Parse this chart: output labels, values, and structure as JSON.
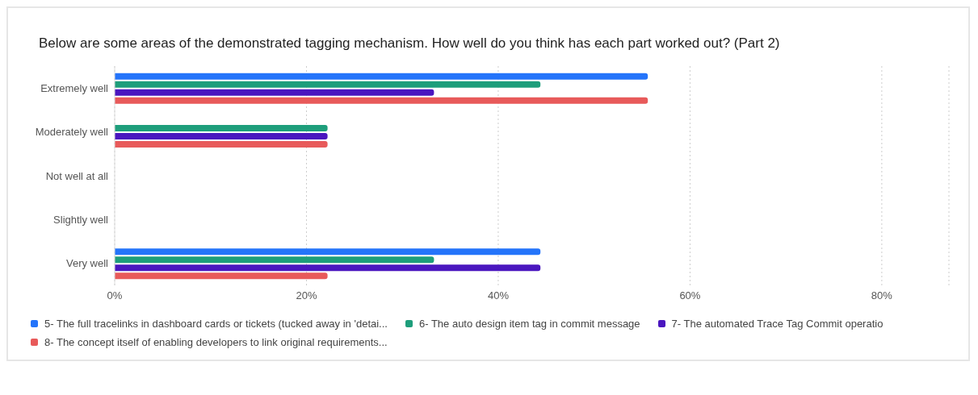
{
  "chart_data": {
    "type": "bar",
    "orientation": "horizontal",
    "title": "Below are some areas of the demonstrated tagging mechanism. How well do you think has each part worked out? (Part 2)",
    "categories": [
      "Extremely well",
      "Moderately well",
      "Not well at all",
      "Slightly well",
      "Very well"
    ],
    "series": [
      {
        "name": "5- The full tracelinks in dashboard cards or tickets (tucked away in 'detai...",
        "color": "#2474fa",
        "values": [
          55.6,
          0,
          0,
          0,
          44.4
        ]
      },
      {
        "name": "6- The auto design item tag in commit message",
        "color": "#1e9e7b",
        "values": [
          44.4,
          22.2,
          0,
          0,
          33.3
        ]
      },
      {
        "name": "7- The automated Trace Tag Commit operatio",
        "color": "#4a16bf",
        "values": [
          33.3,
          22.2,
          0,
          0,
          44.4
        ]
      },
      {
        "name": "8- The concept itself of enabling developers to link original requirements...",
        "color": "#e85a5a",
        "values": [
          55.6,
          22.2,
          0,
          0,
          22.2
        ]
      }
    ],
    "xlim": [
      0,
      87
    ],
    "xticks": [
      {
        "value": 0,
        "label": "0%"
      },
      {
        "value": 20,
        "label": "20%"
      },
      {
        "value": 40,
        "label": "40%"
      },
      {
        "value": 60,
        "label": "60%"
      },
      {
        "value": 80,
        "label": "80%"
      }
    ],
    "grid": "x",
    "legend": "bottom"
  }
}
